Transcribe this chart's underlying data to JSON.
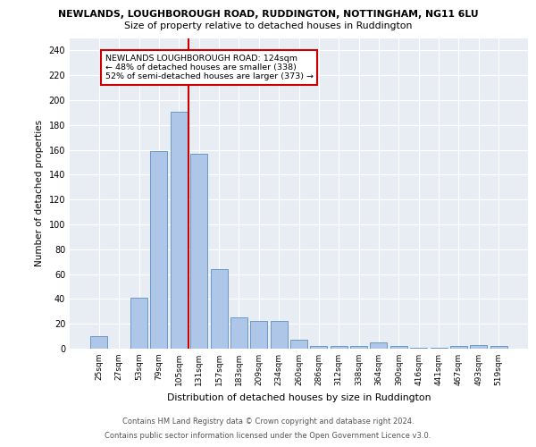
{
  "title_line1": "NEWLANDS, LOUGHBOROUGH ROAD, RUDDINGTON, NOTTINGHAM, NG11 6LU",
  "title_line2": "Size of property relative to detached houses in Ruddington",
  "xlabel": "Distribution of detached houses by size in Ruddington",
  "ylabel": "Number of detached properties",
  "footer_line1": "Contains HM Land Registry data © Crown copyright and database right 2024.",
  "footer_line2": "Contains public sector information licensed under the Open Government Licence v3.0.",
  "bar_labels": [
    "25sqm",
    "27sqm",
    "53sqm",
    "79sqm",
    "105sqm",
    "131sqm",
    "157sqm",
    "183sqm",
    "209sqm",
    "234sqm",
    "260sqm",
    "286sqm",
    "312sqm",
    "338sqm",
    "364sqm",
    "390sqm",
    "416sqm",
    "441sqm",
    "467sqm",
    "493sqm",
    "519sqm"
  ],
  "bar_values": [
    10,
    0,
    41,
    159,
    191,
    157,
    64,
    25,
    22,
    22,
    7,
    2,
    2,
    2,
    5,
    2,
    1,
    1,
    2,
    3,
    2
  ],
  "bar_color": "#aec6e8",
  "bar_edge_color": "#5a8fc2",
  "background_color": "#e8edf4",
  "grid_color": "#ffffff",
  "vline_color": "#cc0000",
  "annotation_text": "NEWLANDS LOUGHBOROUGH ROAD: 124sqm\n← 48% of detached houses are smaller (338)\n52% of semi-detached houses are larger (373) →",
  "annotation_box_color": "#ffffff",
  "annotation_border_color": "#cc0000",
  "ylim": [
    0,
    250
  ],
  "yticks": [
    0,
    20,
    40,
    60,
    80,
    100,
    120,
    140,
    160,
    180,
    200,
    220,
    240
  ],
  "figsize": [
    6.0,
    5.0
  ],
  "dpi": 100
}
